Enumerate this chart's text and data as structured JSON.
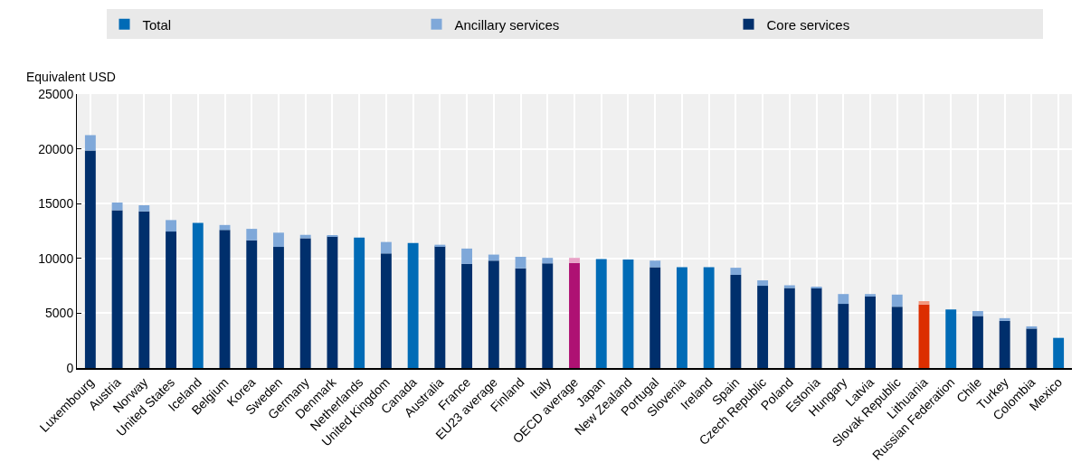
{
  "chart_data": {
    "type": "bar",
    "stacked": true,
    "ylabel": "Equivalent USD",
    "categories": [
      "Luxembourg",
      "Austria",
      "Norway",
      "United States",
      "Iceland",
      "Belgium",
      "Korea",
      "Sweden",
      "Germany",
      "Denmark",
      "Netherlands",
      "United Kingdom",
      "Canada",
      "Australia",
      "France",
      "EU23 average",
      "Finland",
      "Italy",
      "OECD average",
      "Japan",
      "New Zealand",
      "Portugal",
      "Slovenia",
      "Ireland",
      "Spain",
      "Czech Republic",
      "Poland",
      "Estonia",
      "Hungary",
      "Latvia",
      "Slovak Republic",
      "Lithuania",
      "Russian Federation",
      "Chile",
      "Turkey",
      "Colombia",
      "Mexico"
    ],
    "series": [
      {
        "name": "Total",
        "color": "#006bb6",
        "values": [
          null,
          null,
          null,
          null,
          13250,
          null,
          null,
          null,
          null,
          null,
          11900,
          null,
          11400,
          null,
          null,
          null,
          null,
          null,
          null,
          9950,
          9900,
          null,
          9200,
          9200,
          null,
          null,
          null,
          null,
          null,
          null,
          null,
          null,
          5350,
          null,
          null,
          null,
          2750
        ]
      },
      {
        "name": "Core services",
        "color": "#002f6c",
        "colors": [
          "#002f6c",
          "#002f6c",
          "#002f6c",
          "#002f6c",
          "#002f6c",
          "#002f6c",
          "#002f6c",
          "#002f6c",
          "#002f6c",
          "#002f6c",
          "#002f6c",
          "#002f6c",
          "#002f6c",
          "#002f6c",
          "#002f6c",
          "#002f6c",
          "#002f6c",
          "#002f6c",
          "#ae1173",
          "#002f6c",
          "#002f6c",
          "#002f6c",
          "#002f6c",
          "#002f6c",
          "#002f6c",
          "#002f6c",
          "#002f6c",
          "#002f6c",
          "#002f6c",
          "#002f6c",
          "#002f6c",
          "#dc2e00",
          "#002f6c",
          "#002f6c",
          "#002f6c",
          "#002f6c",
          "#002f6c"
        ],
        "values": [
          19850,
          14400,
          14300,
          12450,
          null,
          12600,
          11650,
          11050,
          11850,
          12000,
          null,
          10450,
          null,
          11100,
          9500,
          9800,
          9100,
          9550,
          9600,
          null,
          null,
          9200,
          null,
          null,
          8500,
          7500,
          7300,
          7300,
          5850,
          6600,
          5600,
          5800,
          null,
          4750,
          4300,
          3600,
          null
        ]
      },
      {
        "name": "Ancillary services",
        "color": "#7fa8d9",
        "colors": [
          "#7fa8d9",
          "#7fa8d9",
          "#7fa8d9",
          "#7fa8d9",
          "#7fa8d9",
          "#7fa8d9",
          "#7fa8d9",
          "#7fa8d9",
          "#7fa8d9",
          "#7fa8d9",
          "#7fa8d9",
          "#7fa8d9",
          "#7fa8d9",
          "#7fa8d9",
          "#7fa8d9",
          "#7fa8d9",
          "#7fa8d9",
          "#7fa8d9",
          "#e8a1c6",
          "#7fa8d9",
          "#7fa8d9",
          "#7fa8d9",
          "#7fa8d9",
          "#7fa8d9",
          "#7fa8d9",
          "#7fa8d9",
          "#7fa8d9",
          "#7fa8d9",
          "#7fa8d9",
          "#7fa8d9",
          "#7fa8d9",
          "#f4957a",
          "#7fa8d9",
          "#7fa8d9",
          "#7fa8d9",
          "#7fa8d9",
          "#7fa8d9"
        ],
        "values": [
          1400,
          700,
          550,
          1050,
          null,
          450,
          1050,
          1300,
          300,
          100,
          null,
          1050,
          null,
          150,
          1400,
          550,
          1050,
          500,
          450,
          null,
          null,
          600,
          null,
          null,
          650,
          500,
          250,
          100,
          900,
          150,
          1100,
          300,
          null,
          450,
          250,
          200,
          null
        ]
      }
    ],
    "ylim": [
      0,
      25000
    ],
    "yticks": [
      0,
      5000,
      10000,
      15000,
      20000,
      25000
    ],
    "grid": true,
    "legend": "top"
  }
}
